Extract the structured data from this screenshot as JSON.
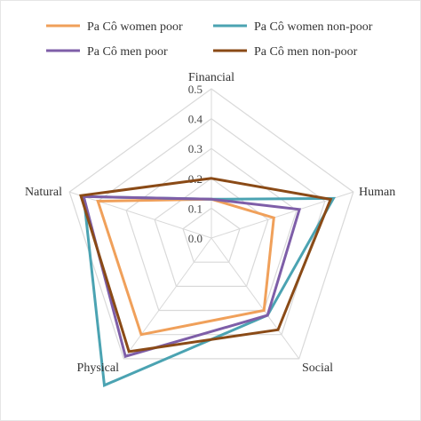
{
  "chart_data": {
    "type": "radar",
    "axes": [
      "Financial",
      "Human",
      "Social",
      "Physical",
      "Natural"
    ],
    "rlim": [
      0,
      0.5
    ],
    "ticks": [
      "0.0",
      "0.1",
      "0.2",
      "0.3",
      "0.4",
      "0.5"
    ],
    "grid": true,
    "legend_position": "top",
    "series": [
      {
        "name": "Pa Cô women poor",
        "color": "#f0a05a",
        "values": [
          0.13,
          0.22,
          0.3,
          0.4,
          0.4
        ]
      },
      {
        "name": "Pa Cô women non-poor",
        "color": "#4ba3b2",
        "values": [
          0.13,
          0.43,
          0.32,
          0.61,
          0.45
        ]
      },
      {
        "name": "Pa Cô men poor",
        "color": "#7e5ea8",
        "values": [
          0.13,
          0.31,
          0.32,
          0.49,
          0.45
        ]
      },
      {
        "name": "Pa Cô men non-poor",
        "color": "#8a4a16",
        "values": [
          0.2,
          0.42,
          0.38,
          0.47,
          0.46
        ]
      }
    ]
  }
}
